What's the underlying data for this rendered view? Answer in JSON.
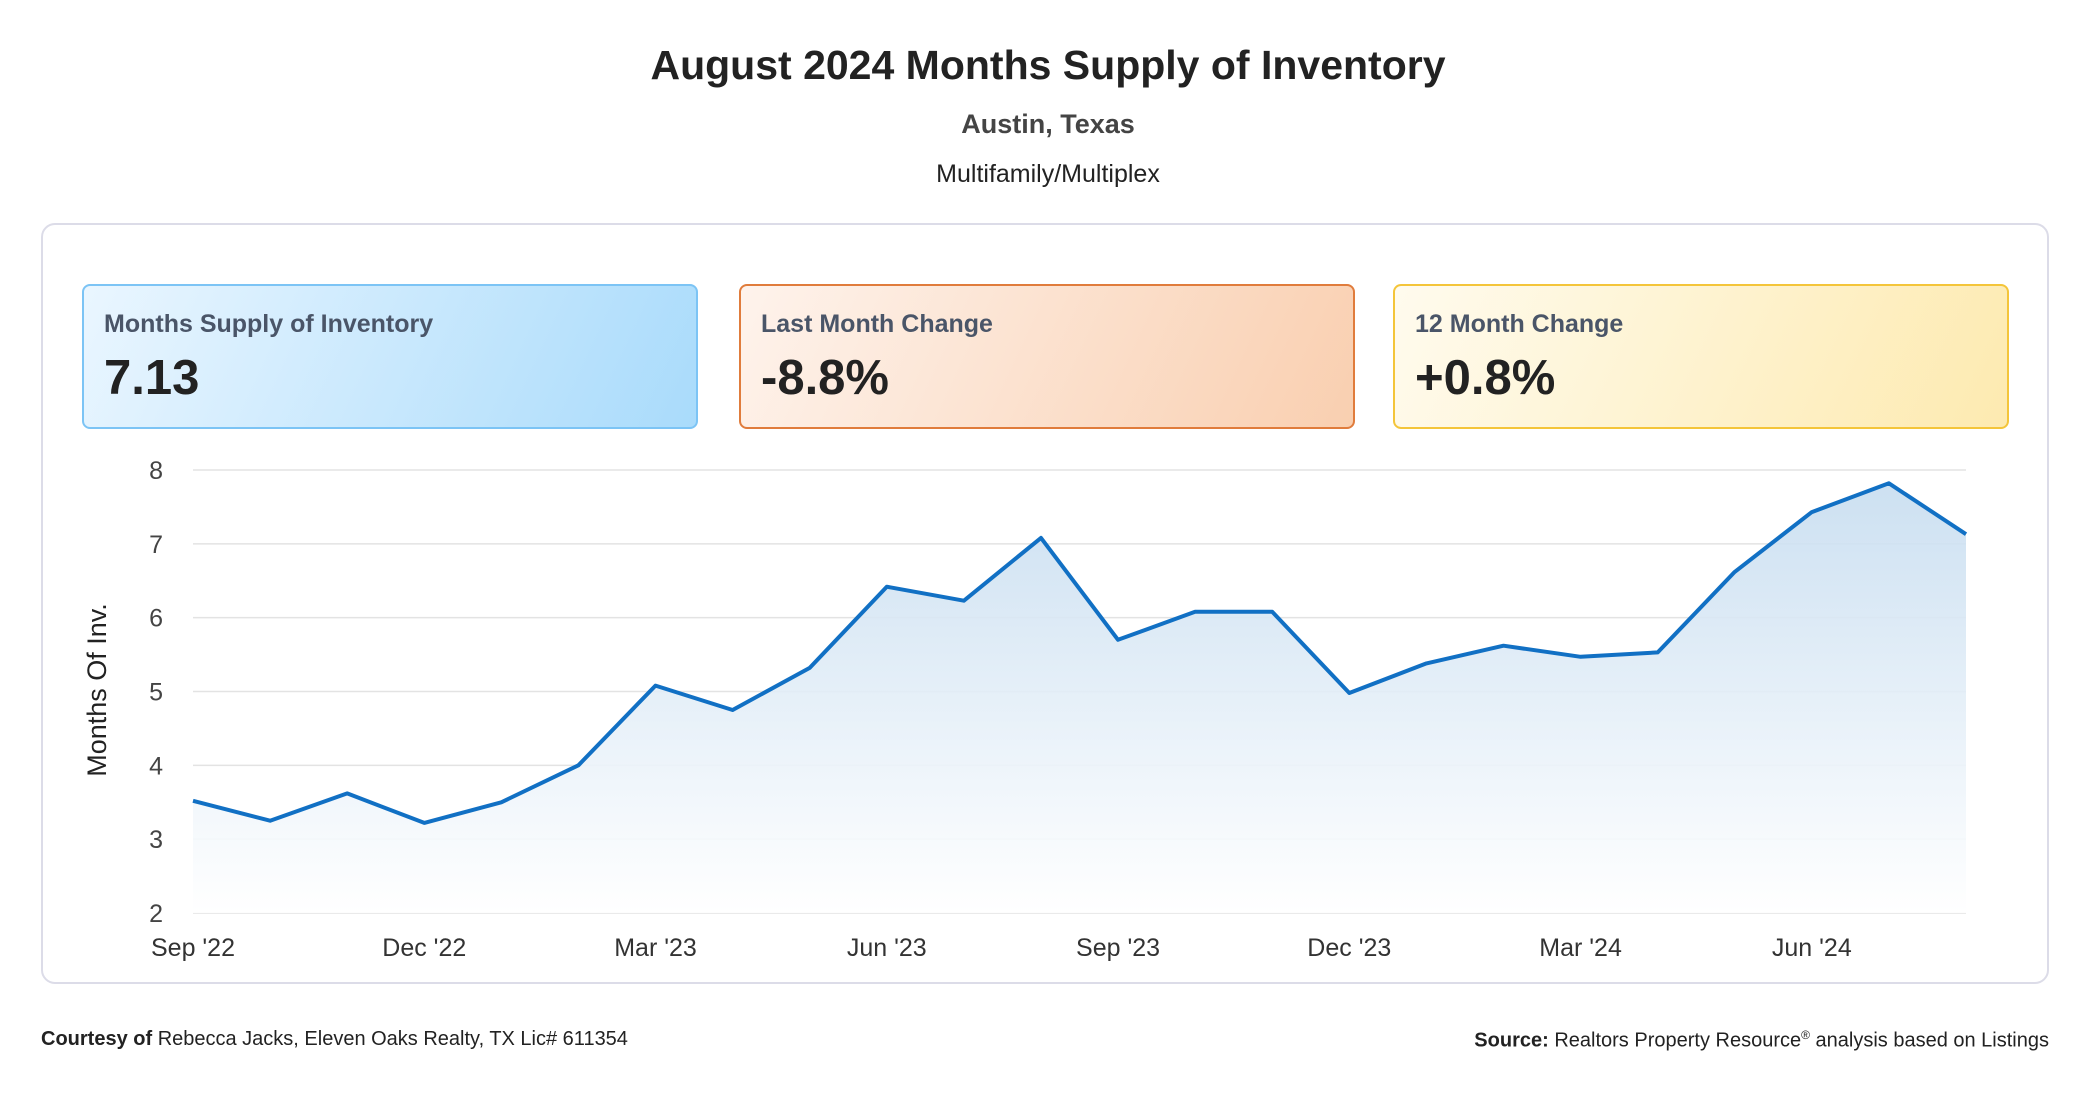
{
  "header": {
    "title": "August 2024 Months Supply of Inventory",
    "subtitle": "Austin, Texas",
    "category": "Multifamily/Multiplex"
  },
  "cards": [
    {
      "label": "Months Supply of Inventory",
      "value": "7.13"
    },
    {
      "label": "Last Month Change",
      "value": "-8.8%"
    },
    {
      "label": "12 Month Change",
      "value": "+0.8%"
    }
  ],
  "chart_data": {
    "type": "area",
    "title": "",
    "xlabel": "",
    "ylabel": "Months Of Inv.",
    "ylim": [
      2,
      8
    ],
    "yticks": [
      2,
      3,
      4,
      5,
      6,
      7,
      8
    ],
    "x": [
      "Sep '22",
      "Oct '22",
      "Nov '22",
      "Dec '22",
      "Jan '23",
      "Feb '23",
      "Mar '23",
      "Apr '23",
      "May '23",
      "Jun '23",
      "Jul '23",
      "Aug '23",
      "Sep '23",
      "Oct '23",
      "Nov '23",
      "Dec '23",
      "Jan '24",
      "Feb '24",
      "Mar '24",
      "Apr '24",
      "May '24",
      "Jun '24",
      "Jul '24",
      "Aug '24"
    ],
    "xtick_labels": [
      "Sep '22",
      "Dec '22",
      "Mar '23",
      "Jun '23",
      "Sep '23",
      "Dec '23",
      "Mar '24",
      "Jun '24"
    ],
    "series": [
      {
        "values": [
          3.52,
          3.25,
          3.62,
          3.22,
          3.5,
          4.0,
          5.08,
          4.75,
          5.32,
          6.42,
          6.23,
          7.08,
          5.7,
          6.08,
          6.08,
          4.98,
          5.38,
          5.62,
          5.47,
          5.53,
          6.62,
          7.43,
          7.82,
          7.13
        ]
      }
    ],
    "grid": true,
    "legend": "none",
    "colors": {
      "line": "#1170c4",
      "fill_top": "#c7ddf0",
      "fill_bottom": "#ffffff",
      "grid": "#e3e3e3"
    }
  },
  "footer": {
    "courtesy_label": "Courtesy of",
    "courtesy_text": "Rebecca Jacks, Eleven Oaks Realty, TX Lic# 611354",
    "source_label": "Source:",
    "source_text": "Realtors Property Resource",
    "source_mark": "®",
    "source_suffix": "analysis based on Listings"
  }
}
